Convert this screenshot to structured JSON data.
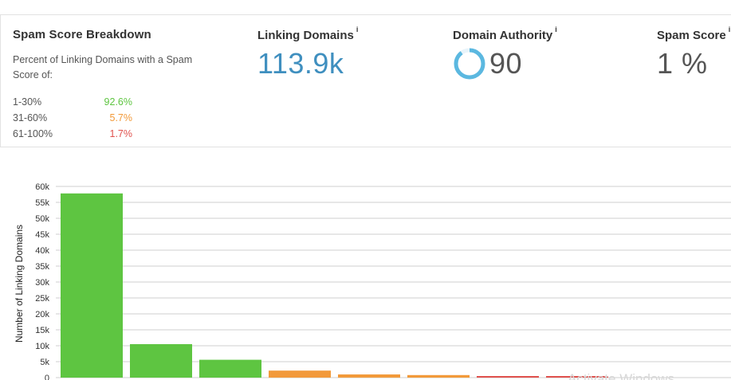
{
  "breakdown": {
    "title": "Spam Score Breakdown",
    "description": "Percent of Linking Domains with a Spam Score of:",
    "ranges": [
      {
        "label": "1-30%",
        "value": "92.6%",
        "color": "#5ec541"
      },
      {
        "label": "31-60%",
        "value": "5.7%",
        "color": "#f29a3a"
      },
      {
        "label": "61-100%",
        "value": "1.7%",
        "color": "#e0524e"
      }
    ]
  },
  "metrics": {
    "linking_domains": {
      "title": "Linking Domains",
      "info": "i",
      "value": "113.9k",
      "color": "#3f8fbf"
    },
    "domain_authority": {
      "title": "Domain Authority",
      "info": "i",
      "value": "90",
      "ring_fraction": 0.9,
      "ring_color": "#5bb8e0"
    },
    "spam_score": {
      "title": "Spam Score",
      "info": "i",
      "value": "1 %"
    }
  },
  "chart_data": {
    "type": "bar",
    "ylabel": "Number of Linking Domains",
    "ylim": [
      0,
      60000
    ],
    "yticks": [
      "0",
      "5k",
      "10k",
      "15k",
      "20k",
      "25k",
      "30k",
      "35k",
      "40k",
      "45k",
      "50k",
      "55k",
      "60k"
    ],
    "grid": true,
    "bars": [
      {
        "value": 57800,
        "color": "#5ec541"
      },
      {
        "value": 10500,
        "color": "#5ec541"
      },
      {
        "value": 5600,
        "color": "#5ec541"
      },
      {
        "value": 2200,
        "color": "#f29a3a"
      },
      {
        "value": 1000,
        "color": "#f29a3a"
      },
      {
        "value": 800,
        "color": "#f29a3a"
      },
      {
        "value": 500,
        "color": "#e0524e"
      },
      {
        "value": 500,
        "color": "#e0524e"
      }
    ]
  },
  "watermark": "Activate Windows"
}
